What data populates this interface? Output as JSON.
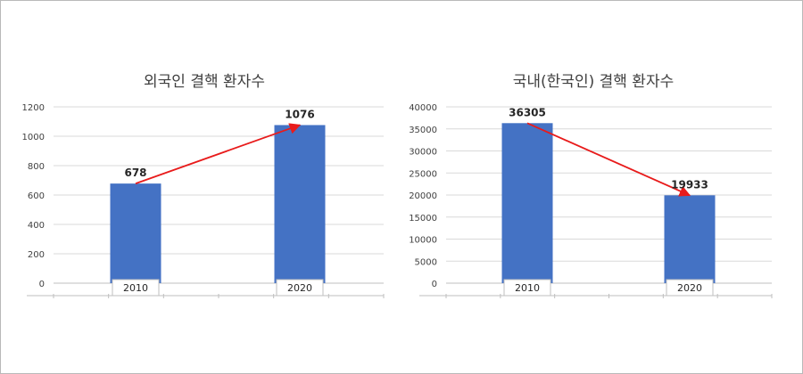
{
  "colors": {
    "bar": "#4472C4",
    "arrow": "#E81B1B",
    "grid": "#d9d9d9",
    "axis": "#bfbfbf"
  },
  "chart_data": [
    {
      "type": "bar",
      "title": "외국인 결핵 환자수",
      "categories": [
        "2010",
        "2020"
      ],
      "values": [
        678,
        1076
      ],
      "data_labels": [
        "678",
        "1076"
      ],
      "ylim": [
        0,
        1200
      ],
      "yticks": [
        "0",
        "200",
        "400",
        "600",
        "800",
        "1000",
        "1200"
      ],
      "grid": true,
      "trend_arrow": "increase"
    },
    {
      "type": "bar",
      "title": "국내(한국인) 결핵 환자수",
      "categories": [
        "2010",
        "2020"
      ],
      "values": [
        36305,
        19933
      ],
      "data_labels": [
        "36305",
        "19933"
      ],
      "ylim": [
        0,
        40000
      ],
      "yticks": [
        "0",
        "5000",
        "10000",
        "15000",
        "20000",
        "25000",
        "30000",
        "35000",
        "40000"
      ],
      "grid": true,
      "trend_arrow": "decrease"
    }
  ]
}
